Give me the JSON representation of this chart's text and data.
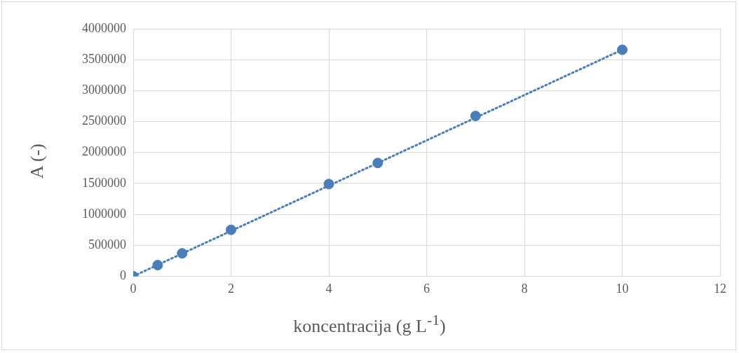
{
  "chart_data": {
    "type": "scatter",
    "xlabel": "koncentracija (g L$^{-1}$)",
    "ylabel": "A (-)",
    "xlim": [
      0,
      12
    ],
    "xticks": [
      0,
      2,
      4,
      6,
      8,
      10,
      12
    ],
    "ylim": [
      0,
      4000000
    ],
    "yticks": [
      0,
      500000,
      1000000,
      1500000,
      2000000,
      2500000,
      3000000,
      3500000,
      4000000
    ],
    "grid": true,
    "legend": false,
    "marker": "circle",
    "series": [
      {
        "color": "#4a7ebb",
        "x": [
          0,
          0.5,
          1,
          2,
          4,
          5,
          7,
          10
        ],
        "values": [
          0,
          180000,
          370000,
          750000,
          1490000,
          1830000,
          2590000,
          3660000
        ]
      },
      {
        "type": "line",
        "color": "#4a7ebb",
        "line_style": "dotted",
        "marker": "none",
        "x": [
          0,
          10
        ],
        "values": [
          0,
          3660000
        ]
      }
    ]
  }
}
